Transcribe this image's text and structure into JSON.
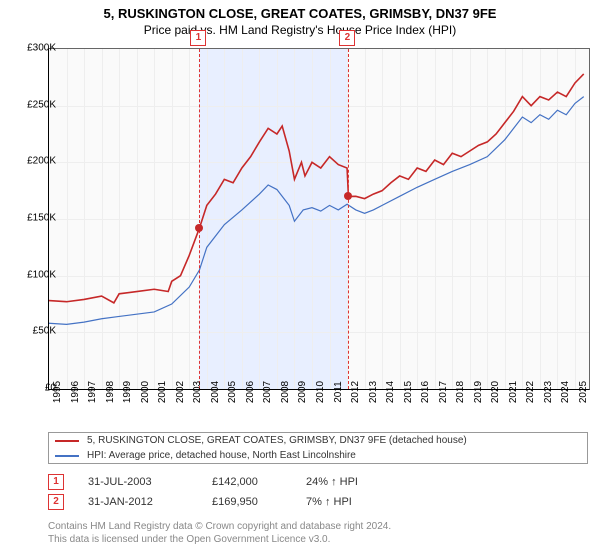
{
  "title": "5, RUSKINGTON CLOSE, GREAT COATES, GRIMSBY, DN37 9FE",
  "subtitle": "Price paid vs. HM Land Registry's House Price Index (HPI)",
  "chart": {
    "type": "line",
    "background_color": "#fafafa",
    "grid_color": "#eeeeee",
    "axis_color": "#000000",
    "x_years": [
      1995,
      1996,
      1997,
      1998,
      1999,
      2000,
      2001,
      2002,
      2003,
      2004,
      2005,
      2006,
      2007,
      2008,
      2009,
      2010,
      2011,
      2012,
      2013,
      2014,
      2015,
      2016,
      2017,
      2018,
      2019,
      2020,
      2021,
      2022,
      2023,
      2024,
      2025
    ],
    "x_min": 1995,
    "x_max": 2025.8,
    "ylim": [
      0,
      300000
    ],
    "ytick_step": 50000,
    "yticks_labels": [
      "£0",
      "£50K",
      "£100K",
      "£150K",
      "£200K",
      "£250K",
      "£300K"
    ],
    "series": [
      {
        "name": "property",
        "label": "5, RUSKINGTON CLOSE, GREAT COATES, GRIMSBY, DN37 9FE (detached house)",
        "color": "#c62828",
        "width": 1.6,
        "points": [
          [
            1995,
            78000
          ],
          [
            1996,
            77000
          ],
          [
            1997,
            79000
          ],
          [
            1998,
            82000
          ],
          [
            1998.7,
            76000
          ],
          [
            1999,
            84000
          ],
          [
            2000,
            86000
          ],
          [
            2001,
            88000
          ],
          [
            2001.8,
            86000
          ],
          [
            2002,
            95000
          ],
          [
            2002.5,
            100000
          ],
          [
            2003,
            118000
          ],
          [
            2003.58,
            142000
          ],
          [
            2004,
            162000
          ],
          [
            2004.5,
            172000
          ],
          [
            2005,
            185000
          ],
          [
            2005.5,
            182000
          ],
          [
            2006,
            195000
          ],
          [
            2006.5,
            205000
          ],
          [
            2007,
            218000
          ],
          [
            2007.5,
            230000
          ],
          [
            2008,
            225000
          ],
          [
            2008.3,
            232000
          ],
          [
            2008.7,
            210000
          ],
          [
            2009,
            185000
          ],
          [
            2009.4,
            200000
          ],
          [
            2009.6,
            188000
          ],
          [
            2010,
            200000
          ],
          [
            2010.5,
            195000
          ],
          [
            2011,
            205000
          ],
          [
            2011.5,
            198000
          ],
          [
            2012,
            195000
          ],
          [
            2012.08,
            169950
          ],
          [
            2012.5,
            170000
          ],
          [
            2013,
            168000
          ],
          [
            2013.5,
            172000
          ],
          [
            2014,
            175000
          ],
          [
            2014.5,
            182000
          ],
          [
            2015,
            188000
          ],
          [
            2015.5,
            185000
          ],
          [
            2016,
            195000
          ],
          [
            2016.5,
            192000
          ],
          [
            2017,
            202000
          ],
          [
            2017.5,
            198000
          ],
          [
            2018,
            208000
          ],
          [
            2018.5,
            205000
          ],
          [
            2019,
            210000
          ],
          [
            2019.5,
            215000
          ],
          [
            2020,
            218000
          ],
          [
            2020.5,
            225000
          ],
          [
            2021,
            235000
          ],
          [
            2021.5,
            245000
          ],
          [
            2022,
            258000
          ],
          [
            2022.5,
            250000
          ],
          [
            2023,
            258000
          ],
          [
            2023.5,
            255000
          ],
          [
            2024,
            262000
          ],
          [
            2024.5,
            258000
          ],
          [
            2025,
            270000
          ],
          [
            2025.5,
            278000
          ]
        ]
      },
      {
        "name": "hpi",
        "label": "HPI: Average price, detached house, North East Lincolnshire",
        "color": "#4472c4",
        "width": 1.2,
        "points": [
          [
            1995,
            58000
          ],
          [
            1996,
            57000
          ],
          [
            1997,
            59000
          ],
          [
            1998,
            62000
          ],
          [
            1999,
            64000
          ],
          [
            2000,
            66000
          ],
          [
            2001,
            68000
          ],
          [
            2002,
            75000
          ],
          [
            2003,
            90000
          ],
          [
            2003.58,
            105000
          ],
          [
            2004,
            125000
          ],
          [
            2005,
            145000
          ],
          [
            2006,
            158000
          ],
          [
            2007,
            172000
          ],
          [
            2007.5,
            180000
          ],
          [
            2008,
            176000
          ],
          [
            2008.7,
            162000
          ],
          [
            2009,
            148000
          ],
          [
            2009.5,
            158000
          ],
          [
            2010,
            160000
          ],
          [
            2010.5,
            157000
          ],
          [
            2011,
            162000
          ],
          [
            2011.5,
            158000
          ],
          [
            2012,
            163000
          ],
          [
            2012.5,
            158000
          ],
          [
            2013,
            155000
          ],
          [
            2013.5,
            158000
          ],
          [
            2014,
            162000
          ],
          [
            2015,
            170000
          ],
          [
            2016,
            178000
          ],
          [
            2017,
            185000
          ],
          [
            2018,
            192000
          ],
          [
            2019,
            198000
          ],
          [
            2020,
            205000
          ],
          [
            2021,
            220000
          ],
          [
            2022,
            240000
          ],
          [
            2022.5,
            235000
          ],
          [
            2023,
            242000
          ],
          [
            2023.5,
            238000
          ],
          [
            2024,
            246000
          ],
          [
            2024.5,
            242000
          ],
          [
            2025,
            252000
          ],
          [
            2025.5,
            258000
          ]
        ]
      }
    ],
    "shaded_region": {
      "start": 2003.58,
      "end": 2012.08,
      "color": "#e8efff"
    },
    "markers": [
      {
        "num": "1",
        "x": 2003.58,
        "dot_y": 142000
      },
      {
        "num": "2",
        "x": 2012.08,
        "dot_y": 169950
      }
    ]
  },
  "legend": {
    "border_color": "#999999",
    "items": [
      {
        "color": "#c62828",
        "label": "5, RUSKINGTON CLOSE, GREAT COATES, GRIMSBY, DN37 9FE (detached house)"
      },
      {
        "color": "#4472c4",
        "label": "HPI: Average price, detached house, North East Lincolnshire"
      }
    ]
  },
  "events": [
    {
      "num": "1",
      "date": "31-JUL-2003",
      "price": "£142,000",
      "hpi": "24% ↑ HPI"
    },
    {
      "num": "2",
      "date": "31-JAN-2012",
      "price": "£169,950",
      "hpi": "7% ↑ HPI"
    }
  ],
  "footer_line1": "Contains HM Land Registry data © Crown copyright and database right 2024.",
  "footer_line2": "This data is licensed under the Open Government Licence v3.0."
}
